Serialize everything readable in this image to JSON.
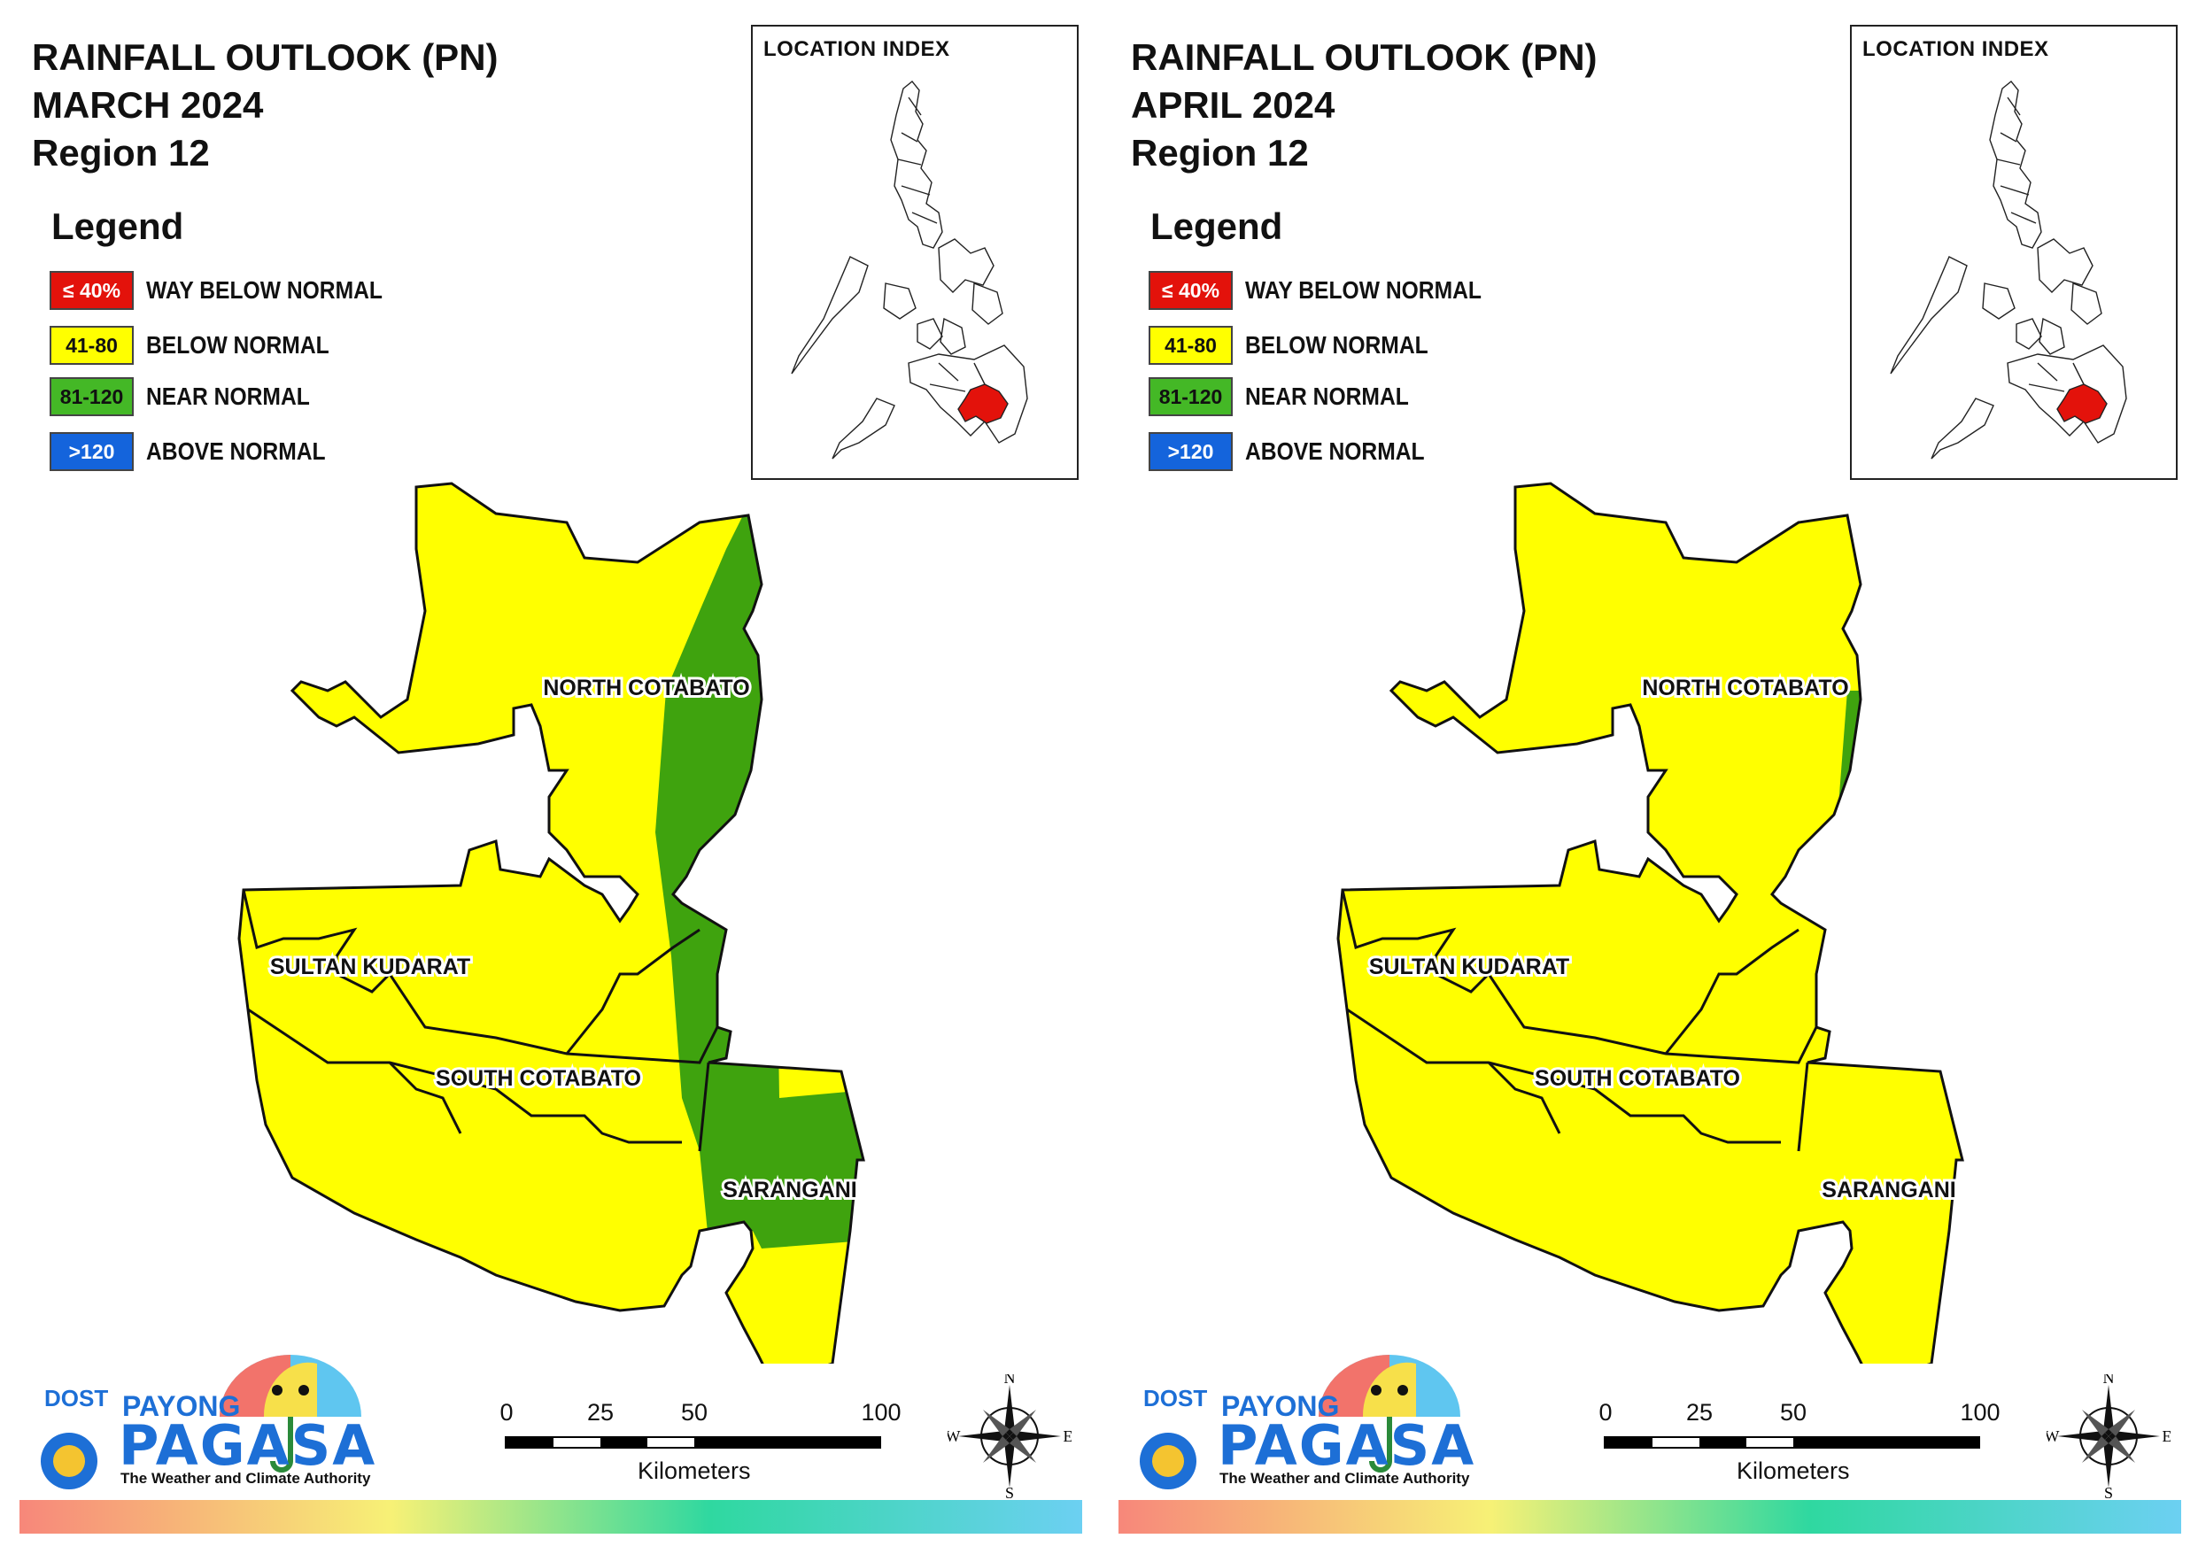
{
  "panels": [
    {
      "title_line1": "RAINFALL OUTLOOK (PN)",
      "title_line2": "MARCH 2024",
      "title_line3": "Region 12",
      "legend_title": "Legend",
      "legend": [
        {
          "range": "≤ 40%",
          "label": "WAY BELOW NORMAL",
          "color": "#e3120b",
          "text_color": "#ffffff"
        },
        {
          "range": "41-80",
          "label": "BELOW NORMAL",
          "color": "#ffff00",
          "text_color": "#111111"
        },
        {
          "range": "81-120",
          "label": "NEAR NORMAL",
          "color": "#44b826",
          "text_color": "#111111"
        },
        {
          "range": ">120",
          "label": "ABOVE NORMAL",
          "color": "#1464dc",
          "text_color": "#ffffff"
        }
      ],
      "location_index_title": "LOCATION INDEX",
      "provinces": [
        "NORTH COTABATO",
        "SULTAN KUDARAT",
        "SOUTH COTABATO",
        "SARANGANI"
      ],
      "near_normal_area": "eastern strip of North Cotabato, South Cotabato and northern Sarangani",
      "scale_numbers": [
        "0",
        "25",
        "50",
        "100"
      ],
      "scale_unit": "Kilometers",
      "compass": {
        "n": "N",
        "s": "S",
        "e": "E",
        "w": "W"
      },
      "logo": {
        "dost": "DOST",
        "payong": "PAYONG",
        "pagasa": "PAGASA",
        "tagline": "The Weather and Climate Authority"
      }
    },
    {
      "title_line1": "RAINFALL OUTLOOK (PN)",
      "title_line2": "APRIL 2024",
      "title_line3": "Region 12",
      "legend_title": "Legend",
      "legend": [
        {
          "range": "≤ 40%",
          "label": "WAY BELOW NORMAL",
          "color": "#e3120b",
          "text_color": "#ffffff"
        },
        {
          "range": "41-80",
          "label": "BELOW NORMAL",
          "color": "#ffff00",
          "text_color": "#111111"
        },
        {
          "range": "81-120",
          "label": "NEAR NORMAL",
          "color": "#44b826",
          "text_color": "#111111"
        },
        {
          "range": ">120",
          "label": "ABOVE NORMAL",
          "color": "#1464dc",
          "text_color": "#ffffff"
        }
      ],
      "location_index_title": "LOCATION INDEX",
      "provinces": [
        "NORTH COTABATO",
        "SULTAN KUDARAT",
        "SOUTH COTABATO",
        "SARANGANI"
      ],
      "near_normal_area": "small sliver at eastern edge of North Cotabato",
      "scale_numbers": [
        "0",
        "25",
        "50",
        "100"
      ],
      "scale_unit": "Kilometers",
      "compass": {
        "n": "N",
        "s": "S",
        "e": "E",
        "w": "W"
      },
      "logo": {
        "dost": "DOST",
        "payong": "PAYONG",
        "pagasa": "PAGASA",
        "tagline": "The Weather and Climate Authority"
      }
    }
  ],
  "colors": {
    "region_fill": "#ffff00",
    "near_normal": "#3fa30e",
    "index_highlight": "#e3120b",
    "border": "#111111"
  }
}
